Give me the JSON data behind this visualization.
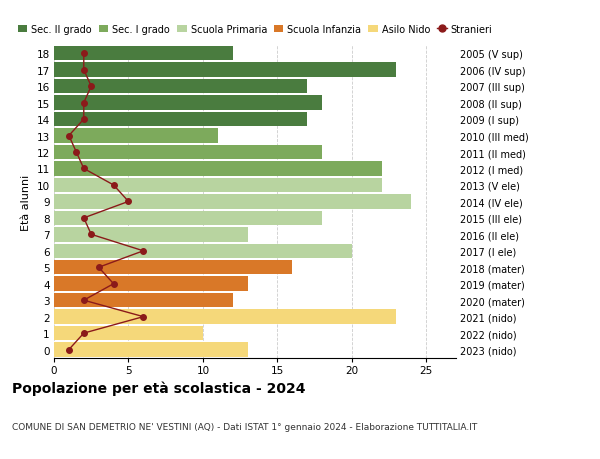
{
  "ages": [
    18,
    17,
    16,
    15,
    14,
    13,
    12,
    11,
    10,
    9,
    8,
    7,
    6,
    5,
    4,
    3,
    2,
    1,
    0
  ],
  "years": [
    "2005 (V sup)",
    "2006 (IV sup)",
    "2007 (III sup)",
    "2008 (II sup)",
    "2009 (I sup)",
    "2010 (III med)",
    "2011 (II med)",
    "2012 (I med)",
    "2013 (V ele)",
    "2014 (IV ele)",
    "2015 (III ele)",
    "2016 (II ele)",
    "2017 (I ele)",
    "2018 (mater)",
    "2019 (mater)",
    "2020 (mater)",
    "2021 (nido)",
    "2022 (nido)",
    "2023 (nido)"
  ],
  "bar_values": [
    12,
    23,
    17,
    18,
    17,
    11,
    18,
    22,
    22,
    24,
    18,
    13,
    20,
    16,
    13,
    12,
    23,
    10,
    13
  ],
  "bar_colors": [
    "#4a7c3f",
    "#4a7c3f",
    "#4a7c3f",
    "#4a7c3f",
    "#4a7c3f",
    "#7daa5c",
    "#7daa5c",
    "#7daa5c",
    "#b8d4a0",
    "#b8d4a0",
    "#b8d4a0",
    "#b8d4a0",
    "#b8d4a0",
    "#d97828",
    "#d97828",
    "#d97828",
    "#f5d87a",
    "#f5d87a",
    "#f5d87a"
  ],
  "stranieri_values": [
    2,
    2,
    2.5,
    2,
    2,
    1,
    1.5,
    2,
    4,
    5,
    2,
    2.5,
    6,
    3,
    4,
    2,
    6,
    2,
    1
  ],
  "stranieri_color": "#8b1a1a",
  "legend_labels": [
    "Sec. II grado",
    "Sec. I grado",
    "Scuola Primaria",
    "Scuola Infanzia",
    "Asilo Nido",
    "Stranieri"
  ],
  "legend_colors": [
    "#4a7c3f",
    "#7daa5c",
    "#b8d4a0",
    "#d97828",
    "#f5d87a",
    "#8b1a1a"
  ],
  "title": "Popolazione per età scolastica - 2024",
  "subtitle": "COMUNE DI SAN DEMETRIO NE' VESTINI (AQ) - Dati ISTAT 1° gennaio 2024 - Elaborazione TUTTITALIA.IT",
  "ylabel_left": "Età alunni",
  "xlim": [
    0,
    27
  ],
  "ylim": [
    -0.5,
    18.5
  ],
  "bar_height": 0.88,
  "background_color": "#ffffff",
  "grid_color": "#cccccc"
}
